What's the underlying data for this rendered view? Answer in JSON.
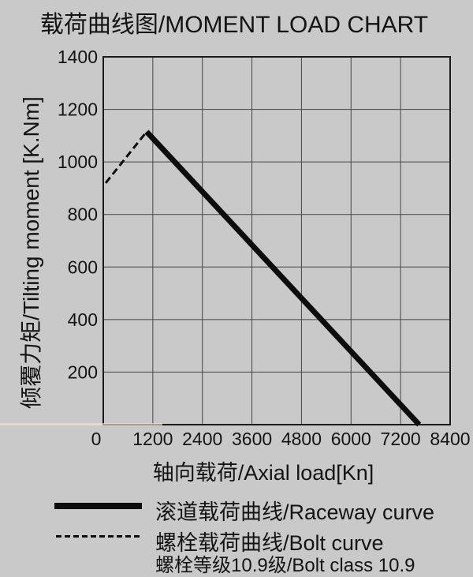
{
  "chart_data": {
    "type": "line",
    "title": "载荷曲线图/MOMENT LOAD CHART",
    "xlabel": "轴向载荷/Axial load[Kn]",
    "ylabel": "倾覆力矩/Tilting moment [K.Nm]",
    "xlim": [
      0,
      8400
    ],
    "ylim": [
      0,
      1400
    ],
    "xticks": [
      0,
      1200,
      2400,
      3600,
      4800,
      6000,
      7200,
      8400
    ],
    "yticks": [
      200,
      400,
      600,
      800,
      1000,
      1200,
      1400
    ],
    "grid": true,
    "legend_position": "bottom-left",
    "series": [
      {
        "name": "滚道载荷曲线/Raceway curve",
        "style": "solid",
        "stroke_width": 7,
        "points": [
          [
            1050,
            1115
          ],
          [
            7650,
            0
          ]
        ]
      },
      {
        "name": "螺栓载荷曲线/Bolt curve",
        "style": "dashed",
        "stroke_width": 3,
        "points": [
          [
            60,
            920
          ],
          [
            1050,
            1115
          ]
        ]
      }
    ],
    "note": "螺栓等级10.9级/Bolt class 10.9",
    "colors": {
      "background": "#c9c9c9",
      "line": "#0d0d0d",
      "grid": "#454545",
      "axis": "#1c1c1c",
      "text": "#141414"
    }
  }
}
